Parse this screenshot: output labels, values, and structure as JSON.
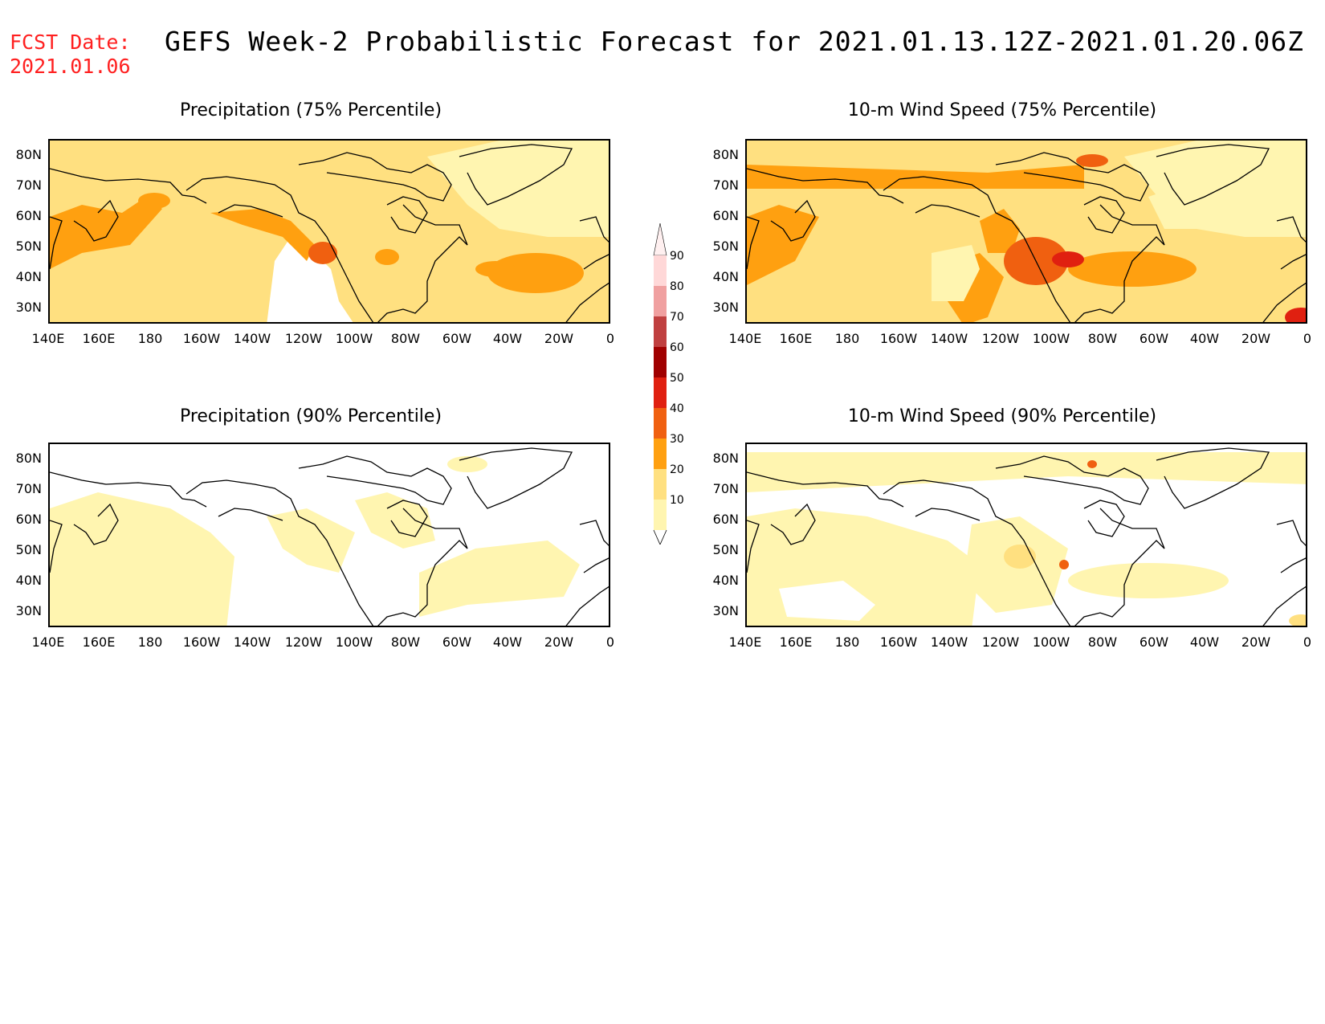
{
  "header": {
    "fcst_label": "FCST Date:",
    "fcst_date": "2021.01.06",
    "title": "GEFS Week-2 Probabilistic Forecast for 2021.01.13.12Z-2021.01.20.06Z"
  },
  "colors": {
    "c10": "#fff5b0",
    "c20": "#ffe080",
    "c30": "#ffa010",
    "c40": "#f06010",
    "c50": "#e02010",
    "c60": "#a00000",
    "c70": "#c04040",
    "c80": "#f0a0a0",
    "c90": "#ffd8d8",
    "coast": "#000000",
    "fcst_text": "#ff2020"
  },
  "colorbar": {
    "labels": [
      "90",
      "80",
      "70",
      "60",
      "50",
      "40",
      "30",
      "20",
      "10"
    ]
  },
  "axes": {
    "lat_labels": [
      "80N",
      "70N",
      "60N",
      "50N",
      "40N",
      "30N"
    ],
    "lon_labels": [
      "140E",
      "160E",
      "180",
      "160W",
      "140W",
      "120W",
      "100W",
      "80W",
      "60W",
      "40W",
      "20W",
      "0"
    ]
  },
  "panels": [
    {
      "title": "Precipitation (75% Percentile)",
      "intensity": "high",
      "field": "precip"
    },
    {
      "title": "10-m Wind Speed (75% Percentile)",
      "intensity": "high",
      "field": "wind"
    },
    {
      "title": "Precipitation (90% Percentile)",
      "intensity": "low",
      "field": "precip"
    },
    {
      "title": "10-m Wind Speed (90% Percentile)",
      "intensity": "low",
      "field": "wind"
    }
  ]
}
